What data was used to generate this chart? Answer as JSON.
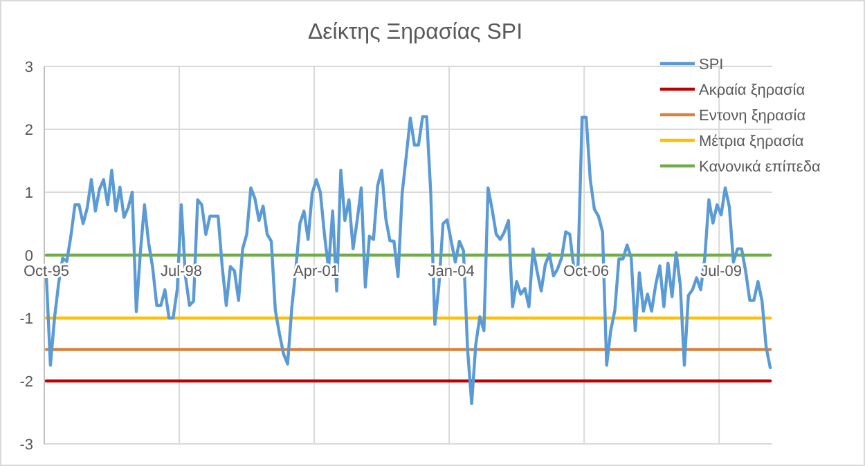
{
  "chart_data": {
    "type": "line",
    "title": "Δείκτης Ξηρασίας SPI",
    "categories": [
      "Oct-95",
      null,
      null,
      null,
      null,
      null,
      null,
      null,
      null,
      null,
      null,
      null,
      null,
      null,
      null,
      null,
      null,
      null,
      null,
      null,
      null,
      null,
      null,
      null,
      null,
      null,
      null,
      null,
      null,
      null,
      null,
      null,
      null,
      "Jul-98",
      null,
      null,
      null,
      null,
      null,
      null,
      null,
      null,
      null,
      null,
      null,
      null,
      null,
      null,
      null,
      null,
      null,
      null,
      null,
      null,
      null,
      null,
      null,
      null,
      null,
      null,
      null,
      null,
      null,
      null,
      null,
      null,
      "Apr-01",
      null,
      null,
      null,
      null,
      null,
      null,
      null,
      null,
      null,
      null,
      null,
      null,
      null,
      null,
      null,
      null,
      null,
      null,
      null,
      null,
      null,
      null,
      null,
      null,
      null,
      null,
      null,
      null,
      null,
      null,
      null,
      null,
      "Jan-04",
      null,
      null,
      null,
      null,
      null,
      null,
      null,
      null,
      null,
      null,
      null,
      null,
      null,
      null,
      null,
      null,
      null,
      null,
      null,
      null,
      null,
      null,
      null,
      null,
      null,
      null,
      null,
      null,
      null,
      null,
      null,
      null,
      "Oct-06",
      null,
      null,
      null,
      null,
      null,
      null,
      null,
      null,
      null,
      null,
      null,
      null,
      null,
      null,
      null,
      null,
      null,
      null,
      null,
      null,
      null,
      null,
      null,
      null,
      null,
      null,
      null,
      null,
      null,
      null,
      null,
      null,
      "Jul-09",
      null,
      null,
      null,
      null,
      null,
      null,
      null,
      null,
      null,
      null,
      null,
      null
    ],
    "series": [
      {
        "name": "SPI",
        "color": "#5b9bd5",
        "values": [
          -0.33,
          -1.75,
          -1.0,
          -0.45,
          -0.05,
          -0.1,
          0.3,
          0.8,
          0.8,
          0.5,
          0.75,
          1.2,
          0.7,
          1.05,
          1.2,
          0.8,
          1.35,
          0.7,
          1.08,
          0.6,
          0.75,
          1.0,
          -0.9,
          0.05,
          0.8,
          0.2,
          -0.2,
          -0.8,
          -0.8,
          -0.55,
          -1.0,
          -1.0,
          -0.55,
          0.8,
          -0.33,
          -0.8,
          -0.73,
          0.88,
          0.8,
          0.33,
          0.62,
          0.62,
          0.62,
          -0.18,
          -0.8,
          -0.18,
          -0.25,
          -0.72,
          0.1,
          0.33,
          1.07,
          0.9,
          0.55,
          0.78,
          0.33,
          0.22,
          -0.88,
          -1.25,
          -1.57,
          -1.73,
          -0.85,
          -0.22,
          0.5,
          0.7,
          0.25,
          0.98,
          1.2,
          1.0,
          0.33,
          -0.22,
          0.7,
          -0.57,
          1.35,
          0.55,
          0.88,
          0.1,
          0.55,
          1.07,
          -0.51,
          0.3,
          0.25,
          1.1,
          1.35,
          0.58,
          0.23,
          0.22,
          -0.34,
          0.98,
          1.57,
          2.18,
          1.75,
          1.75,
          2.2,
          2.2,
          0.98,
          -1.1,
          -0.47,
          0.5,
          0.56,
          0.22,
          -0.11,
          0.22,
          0.07,
          -1.5,
          -2.36,
          -1.42,
          -0.98,
          -1.2,
          1.07,
          0.73,
          0.33,
          0.25,
          0.37,
          0.55,
          -0.82,
          -0.42,
          -0.62,
          -0.53,
          -0.82,
          0.1,
          -0.26,
          -0.57,
          -0.15,
          0.02,
          -0.33,
          -0.22,
          -0.04,
          0.37,
          0.33,
          -0.22,
          -0.18,
          2.19,
          2.19,
          1.2,
          0.73,
          0.62,
          0.37,
          -1.75,
          -1.2,
          -0.88,
          -0.06,
          -0.06,
          0.16,
          -0.04,
          -1.2,
          -0.28,
          -0.89,
          -0.62,
          -0.89,
          -0.47,
          -0.17,
          -0.82,
          -0.13,
          -0.66,
          0.04,
          -0.47,
          -1.75,
          -0.64,
          -0.55,
          -0.36,
          -0.55,
          -0.04,
          0.88,
          0.51,
          0.8,
          0.64,
          1.07,
          0.77,
          -0.11,
          0.1,
          0.1,
          -0.26,
          -0.72,
          -0.72,
          -0.42,
          -0.73,
          -1.46,
          -1.79
        ]
      },
      {
        "name": "Ακραία ξηρασία",
        "color": "#c00000",
        "values": [
          -2,
          -2,
          -2,
          -2,
          -2,
          -2,
          -2,
          -2,
          -2,
          -2,
          -2,
          -2,
          -2,
          -2,
          -2,
          -2,
          -2,
          -2,
          -2,
          -2,
          -2,
          -2,
          -2,
          -2,
          -2,
          -2,
          -2,
          -2,
          -2,
          -2,
          -2,
          -2,
          -2,
          -2,
          -2,
          -2,
          -2,
          -2,
          -2,
          -2,
          -2,
          -2,
          -2,
          -2,
          -2,
          -2,
          -2,
          -2,
          -2,
          -2,
          -2,
          -2,
          -2,
          -2,
          -2,
          -2,
          -2,
          -2,
          -2,
          -2,
          -2,
          -2,
          -2,
          -2,
          -2,
          -2,
          -2,
          -2,
          -2,
          -2,
          -2,
          -2,
          -2,
          -2,
          -2,
          -2,
          -2,
          -2,
          -2,
          -2,
          -2,
          -2,
          -2,
          -2,
          -2,
          -2,
          -2,
          -2,
          -2,
          -2,
          -2,
          -2,
          -2,
          -2,
          -2,
          -2,
          -2,
          -2,
          -2,
          -2,
          -2,
          -2,
          -2,
          -2,
          -2,
          -2,
          -2,
          -2,
          -2,
          -2,
          -2,
          -2,
          -2,
          -2,
          -2,
          -2,
          -2,
          -2,
          -2,
          -2,
          -2,
          -2,
          -2,
          -2,
          -2,
          -2,
          -2,
          -2,
          -2,
          -2,
          -2,
          -2,
          -2,
          -2,
          -2,
          -2,
          -2,
          -2,
          -2,
          -2,
          -2,
          -2,
          -2,
          -2,
          -2,
          -2,
          -2,
          -2,
          -2,
          -2,
          -2,
          -2,
          -2,
          -2,
          -2,
          -2,
          -2,
          -2,
          -2,
          -2,
          -2,
          -2,
          -2,
          -2,
          -2,
          -2,
          -2,
          -2,
          -2,
          -2,
          -2,
          -2,
          -2,
          -2,
          -2,
          -2,
          -2,
          -2
        ]
      },
      {
        "name": "Εντονη ξηρασία",
        "color": "#d9823f",
        "values": [
          -1.5,
          -1.5,
          -1.5,
          -1.5,
          -1.5,
          -1.5,
          -1.5,
          -1.5,
          -1.5,
          -1.5,
          -1.5,
          -1.5,
          -1.5,
          -1.5,
          -1.5,
          -1.5,
          -1.5,
          -1.5,
          -1.5,
          -1.5,
          -1.5,
          -1.5,
          -1.5,
          -1.5,
          -1.5,
          -1.5,
          -1.5,
          -1.5,
          -1.5,
          -1.5,
          -1.5,
          -1.5,
          -1.5,
          -1.5,
          -1.5,
          -1.5,
          -1.5,
          -1.5,
          -1.5,
          -1.5,
          -1.5,
          -1.5,
          -1.5,
          -1.5,
          -1.5,
          -1.5,
          -1.5,
          -1.5,
          -1.5,
          -1.5,
          -1.5,
          -1.5,
          -1.5,
          -1.5,
          -1.5,
          -1.5,
          -1.5,
          -1.5,
          -1.5,
          -1.5,
          -1.5,
          -1.5,
          -1.5,
          -1.5,
          -1.5,
          -1.5,
          -1.5,
          -1.5,
          -1.5,
          -1.5,
          -1.5,
          -1.5,
          -1.5,
          -1.5,
          -1.5,
          -1.5,
          -1.5,
          -1.5,
          -1.5,
          -1.5,
          -1.5,
          -1.5,
          -1.5,
          -1.5,
          -1.5,
          -1.5,
          -1.5,
          -1.5,
          -1.5,
          -1.5,
          -1.5,
          -1.5,
          -1.5,
          -1.5,
          -1.5,
          -1.5,
          -1.5,
          -1.5,
          -1.5,
          -1.5,
          -1.5,
          -1.5,
          -1.5,
          -1.5,
          -1.5,
          -1.5,
          -1.5,
          -1.5,
          -1.5,
          -1.5,
          -1.5,
          -1.5,
          -1.5,
          -1.5,
          -1.5,
          -1.5,
          -1.5,
          -1.5,
          -1.5,
          -1.5,
          -1.5,
          -1.5,
          -1.5,
          -1.5,
          -1.5,
          -1.5,
          -1.5,
          -1.5,
          -1.5,
          -1.5,
          -1.5,
          -1.5,
          -1.5,
          -1.5,
          -1.5,
          -1.5,
          -1.5,
          -1.5,
          -1.5,
          -1.5,
          -1.5,
          -1.5,
          -1.5,
          -1.5,
          -1.5,
          -1.5,
          -1.5,
          -1.5,
          -1.5,
          -1.5,
          -1.5,
          -1.5,
          -1.5,
          -1.5,
          -1.5,
          -1.5,
          -1.5,
          -1.5,
          -1.5,
          -1.5,
          -1.5,
          -1.5,
          -1.5,
          -1.5,
          -1.5,
          -1.5,
          -1.5,
          -1.5,
          -1.5,
          -1.5,
          -1.5,
          -1.5,
          -1.5,
          -1.5,
          -1.5,
          -1.5,
          -1.5,
          -1.5
        ]
      },
      {
        "name": "Μέτρια ξηρασία",
        "color": "#ffc000",
        "values": [
          -1,
          -1,
          -1,
          -1,
          -1,
          -1,
          -1,
          -1,
          -1,
          -1,
          -1,
          -1,
          -1,
          -1,
          -1,
          -1,
          -1,
          -1,
          -1,
          -1,
          -1,
          -1,
          -1,
          -1,
          -1,
          -1,
          -1,
          -1,
          -1,
          -1,
          -1,
          -1,
          -1,
          -1,
          -1,
          -1,
          -1,
          -1,
          -1,
          -1,
          -1,
          -1,
          -1,
          -1,
          -1,
          -1,
          -1,
          -1,
          -1,
          -1,
          -1,
          -1,
          -1,
          -1,
          -1,
          -1,
          -1,
          -1,
          -1,
          -1,
          -1,
          -1,
          -1,
          -1,
          -1,
          -1,
          -1,
          -1,
          -1,
          -1,
          -1,
          -1,
          -1,
          -1,
          -1,
          -1,
          -1,
          -1,
          -1,
          -1,
          -1,
          -1,
          -1,
          -1,
          -1,
          -1,
          -1,
          -1,
          -1,
          -1,
          -1,
          -1,
          -1,
          -1,
          -1,
          -1,
          -1,
          -1,
          -1,
          -1,
          -1,
          -1,
          -1,
          -1,
          -1,
          -1,
          -1,
          -1,
          -1,
          -1,
          -1,
          -1,
          -1,
          -1,
          -1,
          -1,
          -1,
          -1,
          -1,
          -1,
          -1,
          -1,
          -1,
          -1,
          -1,
          -1,
          -1,
          -1,
          -1,
          -1,
          -1,
          -1,
          -1,
          -1,
          -1,
          -1,
          -1,
          -1,
          -1,
          -1,
          -1,
          -1,
          -1,
          -1,
          -1,
          -1,
          -1,
          -1,
          -1,
          -1,
          -1,
          -1,
          -1,
          -1,
          -1,
          -1,
          -1,
          -1,
          -1,
          -1,
          -1,
          -1,
          -1,
          -1,
          -1,
          -1,
          -1,
          -1,
          -1,
          -1,
          -1,
          -1,
          -1,
          -1,
          -1,
          -1,
          -1,
          -1
        ]
      },
      {
        "name": "Κανονικά επίπεδα",
        "color": "#70ad47",
        "values": [
          0,
          0,
          0,
          0,
          0,
          0,
          0,
          0,
          0,
          0,
          0,
          0,
          0,
          0,
          0,
          0,
          0,
          0,
          0,
          0,
          0,
          0,
          0,
          0,
          0,
          0,
          0,
          0,
          0,
          0,
          0,
          0,
          0,
          0,
          0,
          0,
          0,
          0,
          0,
          0,
          0,
          0,
          0,
          0,
          0,
          0,
          0,
          0,
          0,
          0,
          0,
          0,
          0,
          0,
          0,
          0,
          0,
          0,
          0,
          0,
          0,
          0,
          0,
          0,
          0,
          0,
          0,
          0,
          0,
          0,
          0,
          0,
          0,
          0,
          0,
          0,
          0,
          0,
          0,
          0,
          0,
          0,
          0,
          0,
          0,
          0,
          0,
          0,
          0,
          0,
          0,
          0,
          0,
          0,
          0,
          0,
          0,
          0,
          0,
          0,
          0,
          0,
          0,
          0,
          0,
          0,
          0,
          0,
          0,
          0,
          0,
          0,
          0,
          0,
          0,
          0,
          0,
          0,
          0,
          0,
          0,
          0,
          0,
          0,
          0,
          0,
          0,
          0,
          0,
          0,
          0,
          0,
          0,
          0,
          0,
          0,
          0,
          0,
          0,
          0,
          0,
          0,
          0,
          0,
          0,
          0,
          0,
          0,
          0,
          0,
          0,
          0,
          0,
          0,
          0,
          0,
          0,
          0,
          0,
          0,
          0,
          0,
          0,
          0,
          0,
          0,
          0,
          0,
          0,
          0,
          0,
          0,
          0,
          0,
          0,
          0,
          0,
          0
        ]
      }
    ],
    "ylim": [
      -3,
      3
    ],
    "yticks": [
      -3,
      -2,
      -1,
      0,
      1,
      2,
      3
    ],
    "grid": true,
    "legend": "right",
    "marker": "none",
    "line_style": "solid"
  }
}
